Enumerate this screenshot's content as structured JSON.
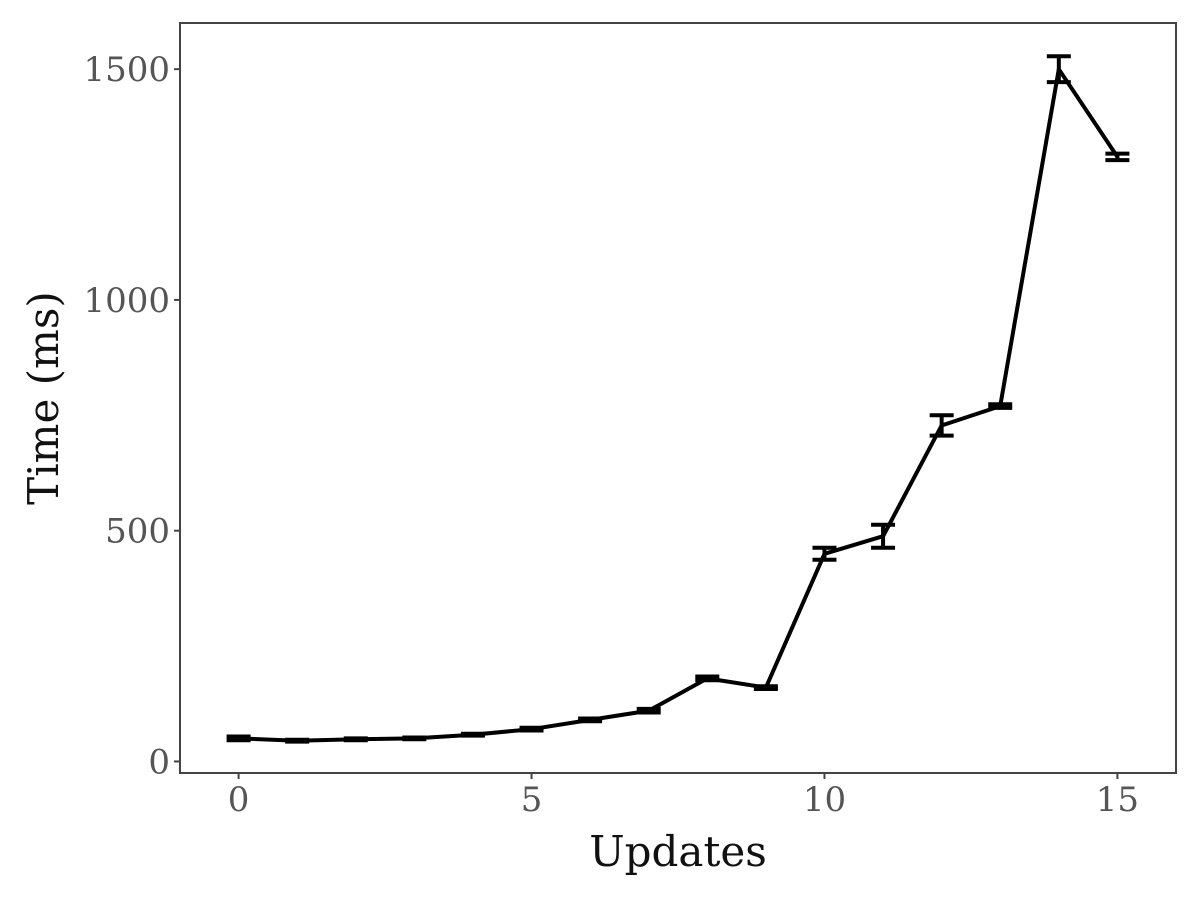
{
  "chart_data": {
    "type": "line",
    "xlabel": "Updates",
    "ylabel": "Time (ms)",
    "xlim": [
      -1,
      16
    ],
    "ylim": [
      -25,
      1600
    ],
    "xticks": [
      0,
      5,
      10,
      15
    ],
    "yticks": [
      0,
      500,
      1000,
      1500
    ],
    "grid": false,
    "series": [
      {
        "x": [
          0,
          1,
          2,
          3,
          4,
          5,
          6,
          7,
          8,
          9,
          10,
          11,
          12,
          13,
          14,
          15
        ],
        "y": [
          50,
          45,
          48,
          50,
          58,
          70,
          90,
          110,
          180,
          160,
          450,
          488,
          728,
          770,
          1500,
          1310
        ],
        "err": [
          4,
          2,
          2,
          2,
          2,
          3,
          3,
          4,
          4,
          3,
          13,
          25,
          22,
          4,
          28,
          7
        ]
      }
    ]
  }
}
